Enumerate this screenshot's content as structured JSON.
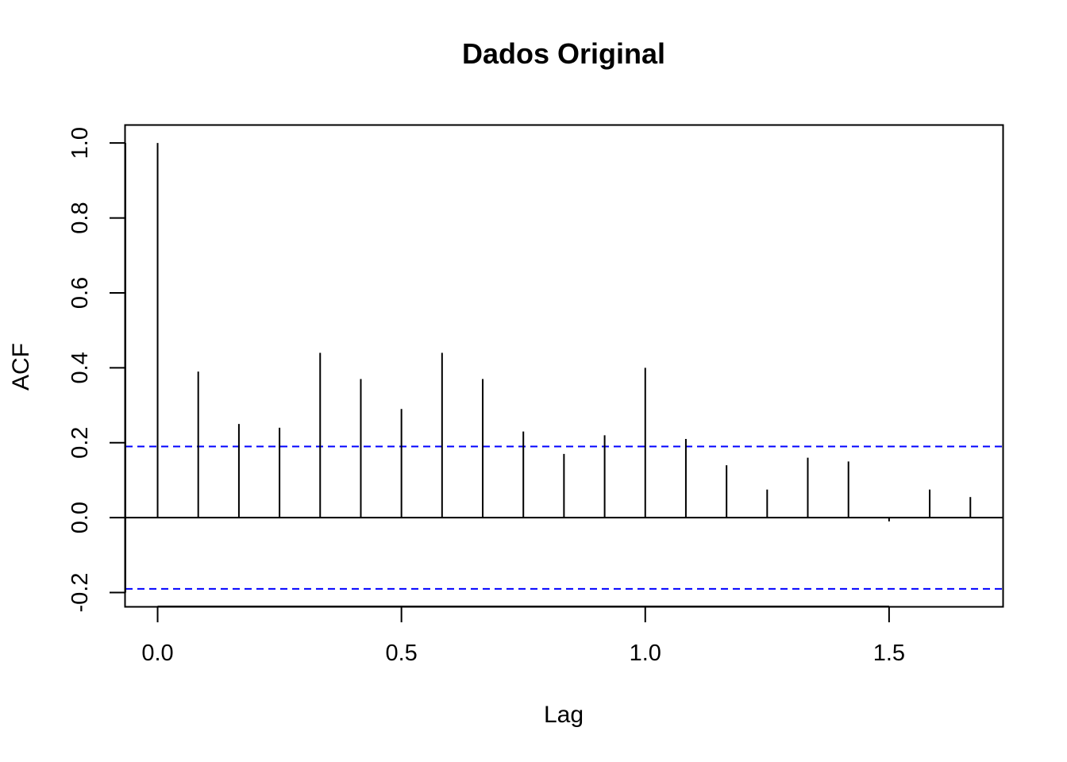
{
  "chart_data": {
    "type": "bar",
    "title": "Dados Original",
    "xlabel": "Lag",
    "ylabel": "ACF",
    "xlim": [
      -0.066,
      1.733
    ],
    "ylim": [
      -0.237,
      1.047
    ],
    "x_ticks": [
      0.0,
      0.5,
      1.0,
      1.5
    ],
    "x_tick_labels": [
      "0.0",
      "0.5",
      "1.0",
      "1.5"
    ],
    "y_ticks": [
      -0.2,
      0.0,
      0.2,
      0.4,
      0.6,
      0.8,
      1.0
    ],
    "y_tick_labels": [
      "-0.2",
      "0.0",
      "0.2",
      "0.4",
      "0.6",
      "0.8",
      "1.0"
    ],
    "lags": [
      0.0,
      0.0833,
      0.1667,
      0.25,
      0.3333,
      0.4167,
      0.5,
      0.5833,
      0.6667,
      0.75,
      0.8333,
      0.9167,
      1.0,
      1.0833,
      1.1667,
      1.25,
      1.3333,
      1.4167,
      1.5,
      1.5833,
      1.6667
    ],
    "acf": [
      1.0,
      0.39,
      0.25,
      0.24,
      0.44,
      0.37,
      0.29,
      0.44,
      0.37,
      0.23,
      0.17,
      0.22,
      0.4,
      0.21,
      0.14,
      0.075,
      0.16,
      0.15,
      -0.01,
      0.075,
      0.055
    ],
    "confidence_bound": 0.19,
    "colors": {
      "bars": "#000000",
      "confidence_lines": "#0000ff",
      "zero_line": "#000000"
    },
    "grid": false,
    "legend": "none"
  }
}
